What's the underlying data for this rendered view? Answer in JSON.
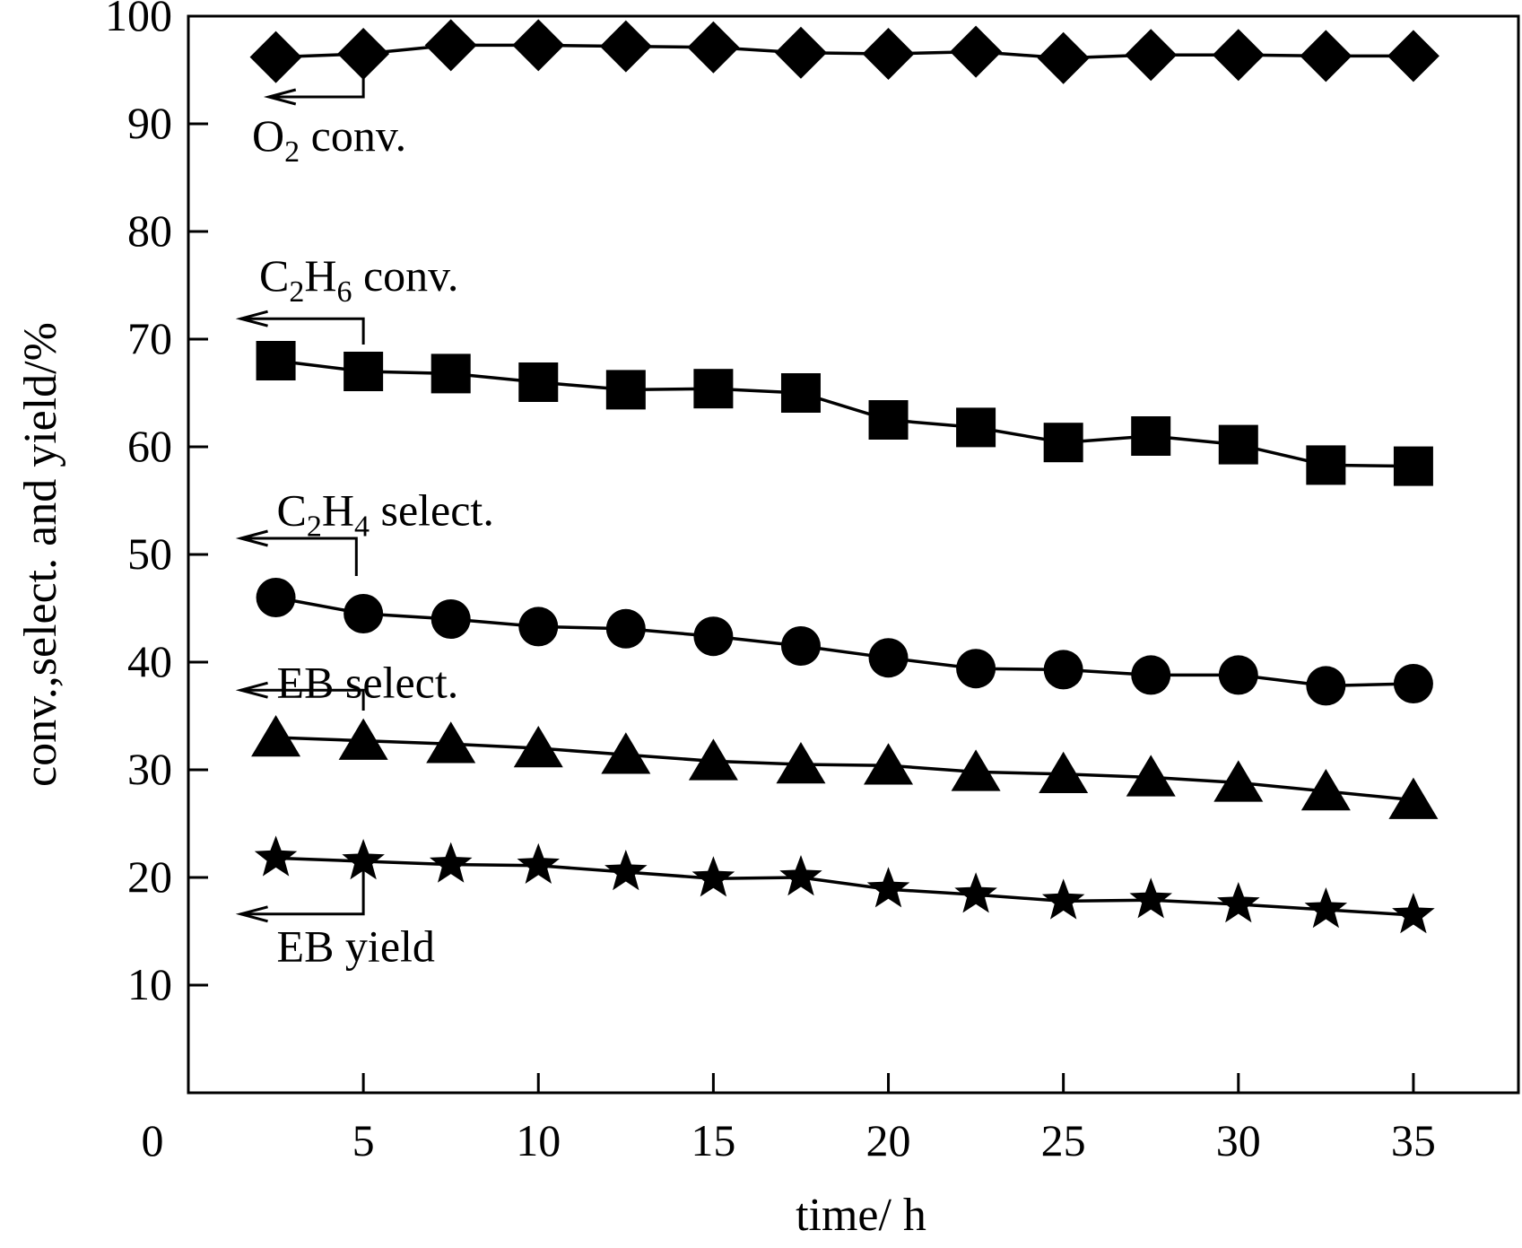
{
  "chart_data": {
    "type": "line",
    "xlabel": "time/ h",
    "ylabel": "conv.,select. and yield/%",
    "xlim": [
      0,
      38
    ],
    "ylim": [
      0,
      100
    ],
    "xticks": [
      0,
      5,
      10,
      15,
      20,
      25,
      30,
      35
    ],
    "yticks": [
      10,
      20,
      30,
      40,
      50,
      60,
      70,
      80,
      90,
      100
    ],
    "grid": false,
    "legend": "none",
    "x": [
      2.5,
      5,
      7.5,
      10,
      12.5,
      15,
      17.5,
      20,
      22.5,
      25,
      27.5,
      30,
      32.5,
      35
    ],
    "series": [
      {
        "key": "o2",
        "marker": "diamond",
        "color": "#000000",
        "values": [
          96.2,
          96.5,
          97.3,
          97.3,
          97.2,
          97.1,
          96.6,
          96.5,
          96.7,
          96.1,
          96.4,
          96.4,
          96.3,
          96.3
        ],
        "annotation": {
          "base": "O",
          "sub": "2",
          "rest": " conv.",
          "text_xy": [
            1,
            87.5
          ],
          "arrow": {
            "from_x": 5,
            "from_y": 96.5,
            "down_to_y": 92.5,
            "to_x": 2.3
          }
        }
      },
      {
        "key": "c2h6",
        "marker": "square",
        "color": "#000000",
        "values": [
          68.0,
          67.0,
          66.8,
          66.0,
          65.3,
          65.4,
          65.0,
          62.5,
          61.8,
          60.4,
          61.0,
          60.2,
          58.3,
          58.2
        ],
        "annotation": {
          "base": "C",
          "sub": "2",
          "sub2": "6",
          "mid": "H",
          "rest": " conv.",
          "text_xy": [
            1,
            74.5
          ],
          "arrow": {
            "from_x": 5,
            "from_y": 69.5,
            "down_to_y": 71.9,
            "to_x": 1.5
          }
        }
      },
      {
        "key": "c2h4",
        "marker": "circle",
        "color": "#000000",
        "values": [
          46.0,
          44.5,
          44.0,
          43.3,
          43.1,
          42.4,
          41.5,
          40.4,
          39.4,
          39.3,
          38.8,
          38.8,
          37.8,
          38.0
        ],
        "annotation": {
          "base": "C",
          "sub": "2",
          "sub2": "4",
          "mid": "H",
          "rest": " select.",
          "text_xy": [
            1.5,
            52.7
          ],
          "arrow": {
            "from_x": 4.8,
            "from_y": 48,
            "down_to_y": 51.5,
            "to_x": 1.5
          }
        }
      },
      {
        "key": "eb_select",
        "marker": "triangle",
        "color": "#000000",
        "values": [
          33.0,
          32.7,
          32.4,
          32.0,
          31.4,
          30.8,
          30.5,
          30.4,
          29.8,
          29.6,
          29.3,
          28.8,
          28.0,
          27.2
        ],
        "annotation": {
          "text": "EB select.",
          "text_xy": [
            1.5,
            36.7
          ],
          "arrow": {
            "from_x": 5,
            "from_y": 35.5,
            "down_to_y": 37.4,
            "to_x": 1.5
          }
        }
      },
      {
        "key": "eb_yield",
        "marker": "star",
        "color": "#000000",
        "values": [
          21.8,
          21.5,
          21.2,
          21.1,
          20.5,
          19.9,
          20.0,
          18.9,
          18.4,
          17.8,
          17.9,
          17.5,
          17.0,
          16.5
        ],
        "annotation": {
          "text": "EB yield",
          "text_xy": [
            1.5,
            12.2
          ],
          "arrow": {
            "from_x": 5,
            "from_y": 21.5,
            "down_to_y": 16.6,
            "to_x": 1.5
          }
        }
      }
    ]
  }
}
